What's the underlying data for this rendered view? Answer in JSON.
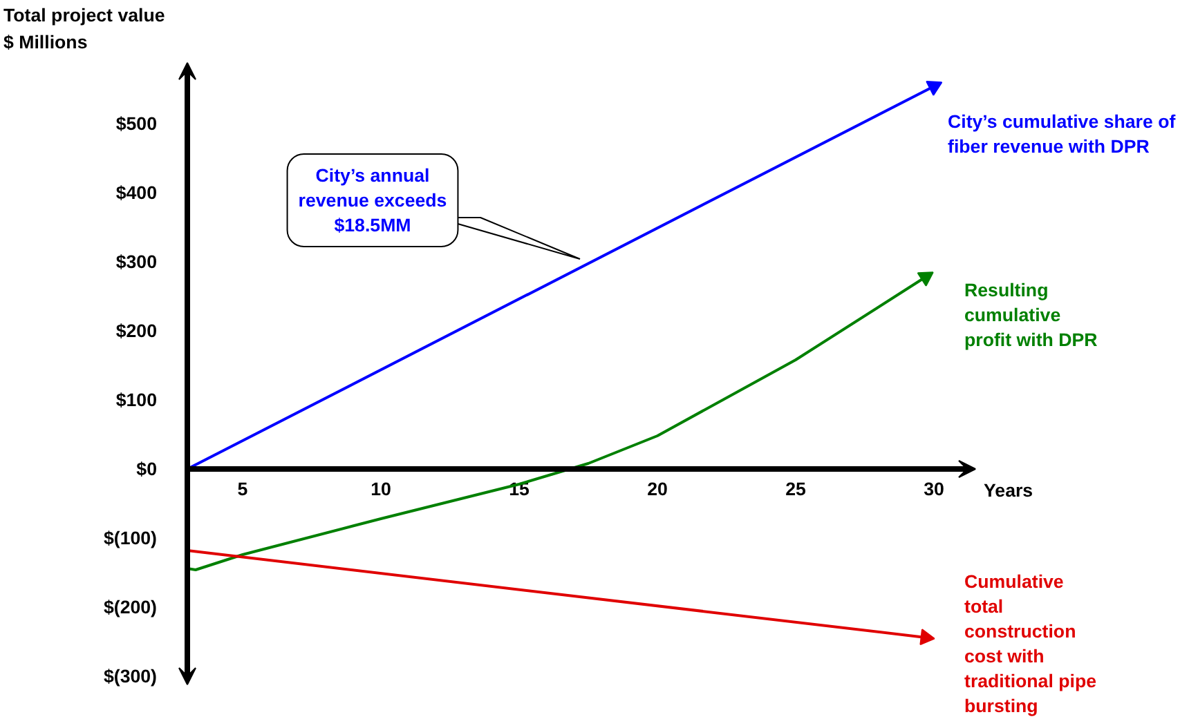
{
  "chart_data": {
    "type": "line",
    "xlabel": "Years",
    "ylabel": "Total project value\n$ Millions",
    "xlim": [
      3,
      31.5
    ],
    "ylim": [
      -312,
      588
    ],
    "xticks": [
      5,
      10,
      15,
      20,
      25,
      30
    ],
    "yticks": [
      {
        "value": 500,
        "label": "$500"
      },
      {
        "value": 400,
        "label": "$400"
      },
      {
        "value": 300,
        "label": "$300"
      },
      {
        "value": 200,
        "label": "$200"
      },
      {
        "value": 100,
        "label": "$100"
      },
      {
        "value": 0,
        "label": "$0"
      },
      {
        "value": -100,
        "label": "$(100)"
      },
      {
        "value": -200,
        "label": "$(200)"
      },
      {
        "value": -300,
        "label": "$(300)"
      }
    ],
    "series": [
      {
        "name": "City’s cumulative share of\nfiber revenue with DPR",
        "color": "#0000ff",
        "x": [
          3,
          30
        ],
        "values": [
          0,
          554
        ]
      },
      {
        "name": "Resulting\ncumulative\nprofit with DPR",
        "color": "#008000",
        "x": [
          3,
          3.3,
          5,
          10,
          15,
          17.5,
          20,
          25,
          29.7
        ],
        "values": [
          -144,
          -146,
          -124,
          -72,
          -22,
          8,
          48,
          158,
          278
        ]
      },
      {
        "name": "Cumulative\ntotal\nconstruction\ncost with\ntraditional pipe\nbursting",
        "color": "#e00000",
        "x": [
          3,
          29.7
        ],
        "values": [
          -118,
          -244
        ]
      }
    ],
    "annotations": [
      {
        "text": "City’s annual\nrevenue exceeds\n$18.5MM",
        "x": 17.2,
        "y": 304
      }
    ],
    "grid": false
  }
}
